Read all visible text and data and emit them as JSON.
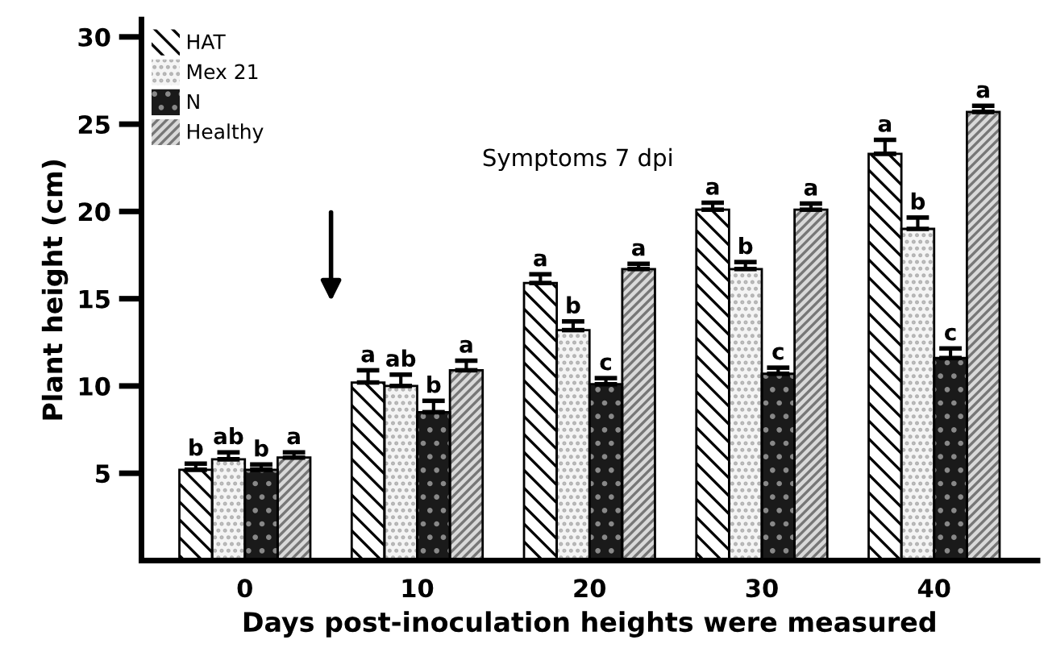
{
  "chart_data": {
    "type": "bar",
    "xlabel": "Days post-inoculation heights were measured",
    "ylabel": "Plant height (cm)",
    "categories": [
      "0",
      "10",
      "20",
      "30",
      "40"
    ],
    "series": [
      {
        "name": "HAT",
        "color": "#ffffff",
        "values": [
          5.2,
          10.2,
          15.9,
          20.1,
          23.3
        ],
        "errors": [
          0.35,
          0.7,
          0.5,
          0.4,
          0.8
        ],
        "value_labels": [
          "b",
          "a",
          "a",
          "a",
          "a"
        ]
      },
      {
        "name": "Mex 21",
        "color": "#f4f4f4",
        "values": [
          5.8,
          10.0,
          13.2,
          16.7,
          19.0
        ],
        "errors": [
          0.4,
          0.65,
          0.5,
          0.4,
          0.65
        ],
        "value_labels": [
          "ab",
          "ab",
          "b",
          "b",
          "b"
        ]
      },
      {
        "name": "N",
        "color": "#1a1a1a",
        "values": [
          5.2,
          8.5,
          10.1,
          10.7,
          11.6
        ],
        "errors": [
          0.3,
          0.65,
          0.35,
          0.35,
          0.55
        ],
        "value_labels": [
          "b",
          "b",
          "c",
          "c",
          "c"
        ]
      },
      {
        "name": "Healthy",
        "color": "#d9d9d9",
        "values": [
          5.9,
          10.9,
          16.7,
          20.1,
          25.7
        ],
        "errors": [
          0.3,
          0.55,
          0.3,
          0.35,
          0.35
        ],
        "value_labels": [
          "a",
          "a",
          "a",
          "a",
          "a"
        ]
      }
    ],
    "ylim": [
      0,
      31
    ],
    "yticks": [
      5,
      10,
      15,
      20,
      25,
      30
    ],
    "annotations": [
      "Symptoms 7 dpi"
    ],
    "legend": "top left",
    "grid": false
  }
}
